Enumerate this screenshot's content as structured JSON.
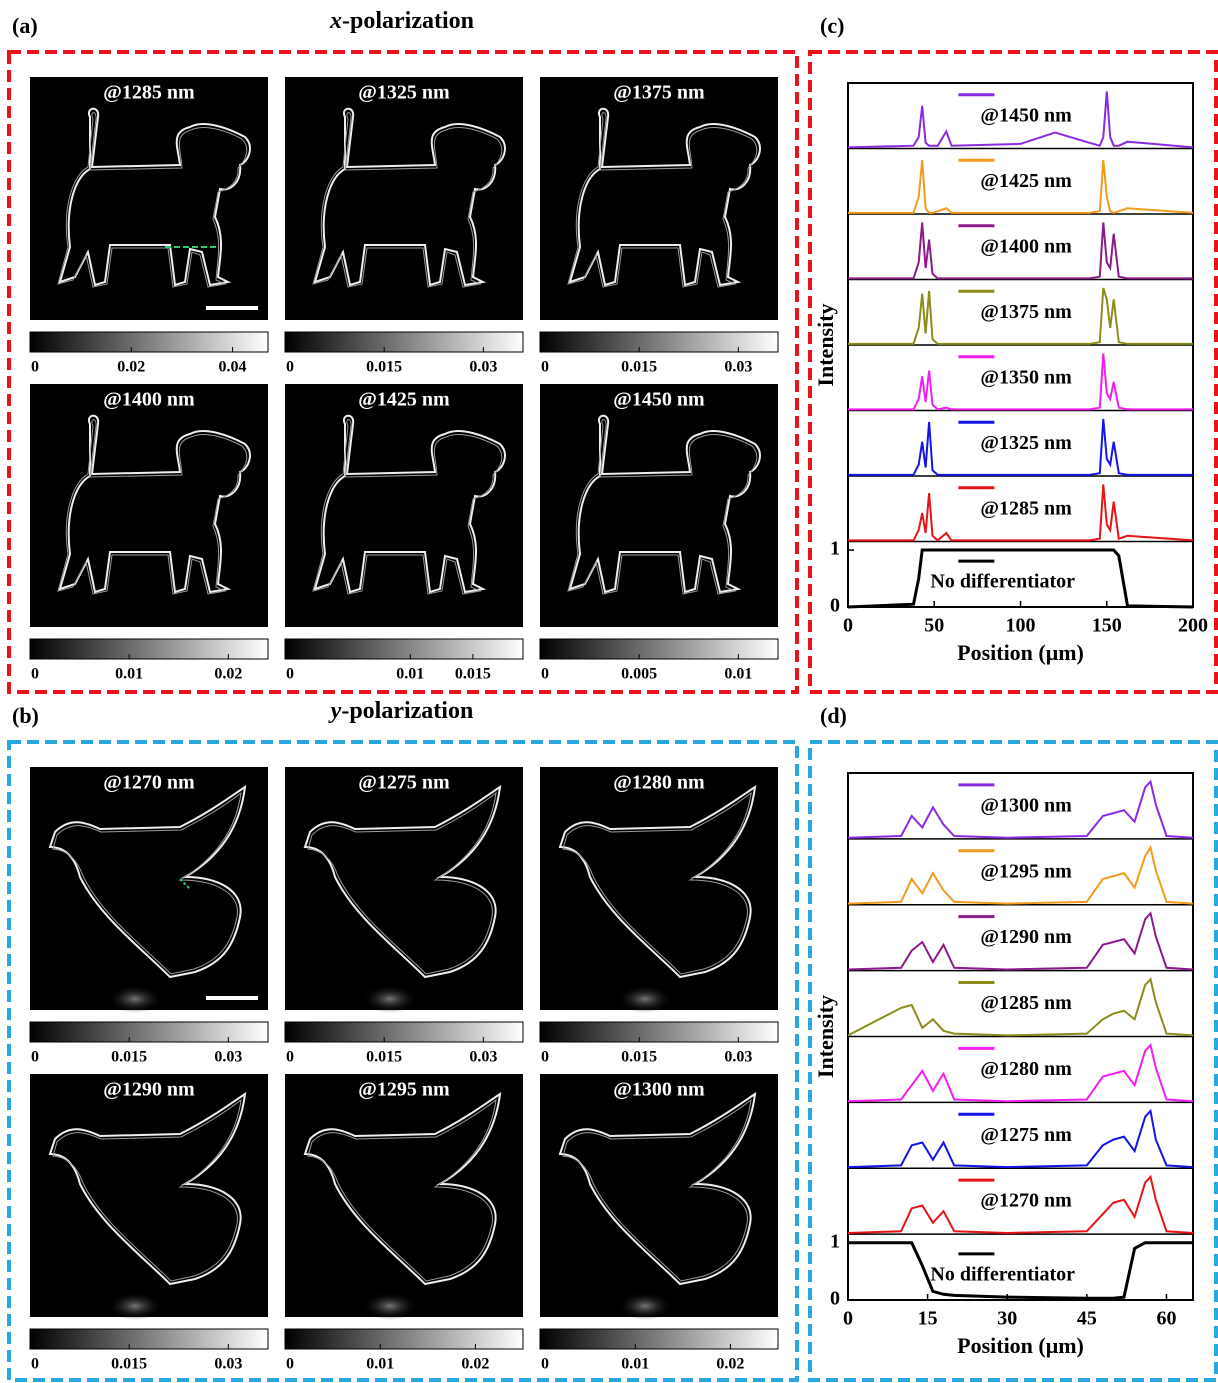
{
  "image_panels": [
    {
      "label": "(a)",
      "title": "x-polarization",
      "border_color": "#e8141b",
      "tiles": [
        {
          "label": "@1285 nm",
          "cbar_lim": [
            0,
            0.047
          ],
          "cbar_ticks": [
            0,
            0.02,
            0.04
          ]
        },
        {
          "label": "@1325 nm",
          "cbar_lim": [
            0,
            0.036
          ],
          "cbar_ticks": [
            0,
            0.015,
            0.03
          ]
        },
        {
          "label": "@1375 nm",
          "cbar_lim": [
            0,
            0.036
          ],
          "cbar_ticks": [
            0,
            0.015,
            0.03
          ]
        },
        {
          "label": "@1400 nm",
          "cbar_lim": [
            0,
            0.024
          ],
          "cbar_ticks": [
            0,
            0.01,
            0.02
          ]
        },
        {
          "label": "@1425 nm",
          "cbar_lim": [
            0,
            0.019
          ],
          "cbar_ticks": [
            0,
            0.01,
            0.015
          ]
        },
        {
          "label": "@1450 nm",
          "cbar_lim": [
            0,
            0.012
          ],
          "cbar_ticks": [
            0,
            0.005,
            0.01
          ]
        }
      ]
    },
    {
      "label": "(b)",
      "title": "y-polarization",
      "border_color": "#29a8e0",
      "tiles": [
        {
          "label": "@1270 nm",
          "cbar_lim": [
            0,
            0.036
          ],
          "cbar_ticks": [
            0,
            0.015,
            0.03
          ]
        },
        {
          "label": "@1275 nm",
          "cbar_lim": [
            0,
            0.036
          ],
          "cbar_ticks": [
            0,
            0.015,
            0.03
          ]
        },
        {
          "label": "@1280 nm",
          "cbar_lim": [
            0,
            0.036
          ],
          "cbar_ticks": [
            0,
            0.015,
            0.03
          ]
        },
        {
          "label": "@1290 nm",
          "cbar_lim": [
            0,
            0.036
          ],
          "cbar_ticks": [
            0,
            0.015,
            0.03
          ]
        },
        {
          "label": "@1295 nm",
          "cbar_lim": [
            0,
            0.025
          ],
          "cbar_ticks": [
            0,
            0.01,
            0.02
          ]
        },
        {
          "label": "@1300 nm",
          "cbar_lim": [
            0,
            0.025
          ],
          "cbar_ticks": [
            0,
            0.01,
            0.02
          ]
        }
      ]
    }
  ],
  "chart_data": [
    {
      "type": "line",
      "label": "(c)",
      "xlabel": "Position (μm)",
      "ylabel": "Intensity",
      "xlim": [
        0,
        200
      ],
      "xticks": [
        0,
        50,
        100,
        150,
        200
      ],
      "ylim": [
        0,
        1.15
      ],
      "yticks": [
        0,
        1
      ],
      "x": [
        0,
        38,
        41,
        43,
        45,
        47,
        49,
        52,
        57,
        60,
        100,
        120,
        140,
        146,
        148,
        150,
        152,
        154,
        157,
        162,
        200
      ],
      "series": [
        {
          "name": "@1450 nm",
          "color": "#8a2be2",
          "values": [
            0.02,
            0.05,
            0.2,
            0.75,
            0.1,
            0.05,
            0.05,
            0.05,
            0.3,
            0.05,
            0.08,
            0.28,
            0.1,
            0.05,
            0.2,
            1.0,
            0.2,
            0.05,
            0.05,
            0.12,
            0.02
          ]
        },
        {
          "name": "@1425 nm",
          "color": "#f39a1e",
          "values": [
            0.02,
            0.02,
            0.3,
            0.95,
            0.1,
            0.02,
            0.02,
            0.05,
            0.1,
            0.02,
            0.02,
            0.02,
            0.02,
            0.05,
            0.95,
            0.3,
            0.05,
            0.02,
            0.05,
            0.1,
            0.02
          ]
        },
        {
          "name": "@1400 nm",
          "color": "#8b1a8b",
          "values": [
            0.02,
            0.02,
            0.3,
            1.0,
            0.2,
            0.7,
            0.1,
            0.02,
            0.02,
            0.02,
            0.02,
            0.02,
            0.02,
            0.05,
            1.0,
            0.3,
            0.2,
            0.8,
            0.05,
            0.02,
            0.02
          ]
        },
        {
          "name": "@1375 nm",
          "color": "#8c8c1a",
          "values": [
            0.02,
            0.02,
            0.3,
            0.9,
            0.2,
            0.95,
            0.1,
            0.02,
            0.02,
            0.02,
            0.02,
            0.02,
            0.02,
            0.05,
            1.0,
            0.8,
            0.3,
            0.8,
            0.05,
            0.02,
            0.02
          ]
        },
        {
          "name": "@1350 nm",
          "color": "#f01ef0",
          "values": [
            0.02,
            0.02,
            0.2,
            0.6,
            0.15,
            0.7,
            0.1,
            0.02,
            0.05,
            0.02,
            0.02,
            0.02,
            0.02,
            0.05,
            1.0,
            0.3,
            0.2,
            0.5,
            0.05,
            0.02,
            0.02
          ]
        },
        {
          "name": "@1325 nm",
          "color": "#1414e6",
          "values": [
            0.02,
            0.02,
            0.2,
            0.6,
            0.15,
            0.95,
            0.1,
            0.02,
            0.02,
            0.02,
            0.02,
            0.02,
            0.02,
            0.05,
            1.0,
            0.3,
            0.2,
            0.6,
            0.05,
            0.02,
            0.02
          ]
        },
        {
          "name": "@1285 nm",
          "color": "#e61414",
          "values": [
            0.02,
            0.02,
            0.2,
            0.5,
            0.15,
            0.85,
            0.1,
            0.02,
            0.15,
            0.02,
            0.02,
            0.02,
            0.02,
            0.05,
            1.0,
            0.3,
            0.2,
            0.7,
            0.05,
            0.1,
            0.02
          ]
        },
        {
          "name": "No differentiator",
          "color": "#000000",
          "values": [
            0,
            0.05,
            0.5,
            1,
            1,
            1,
            1,
            1,
            1,
            1,
            1,
            1,
            1,
            1,
            1,
            1,
            1,
            1,
            0.9,
            0.02,
            0
          ]
        }
      ]
    },
    {
      "type": "line",
      "label": "(d)",
      "xlabel": "Position (μm)",
      "ylabel": "Intensity",
      "xlim": [
        0,
        65
      ],
      "xticks": [
        0,
        15,
        30,
        45,
        60
      ],
      "ylim": [
        0,
        1.15
      ],
      "yticks": [
        0,
        1
      ],
      "x": [
        0,
        10,
        12,
        14,
        16,
        18,
        20,
        30,
        45,
        48,
        50,
        52,
        54,
        56,
        57,
        58,
        60,
        65
      ],
      "series": [
        {
          "name": "@1300 nm",
          "color": "#8a2be2",
          "values": [
            0.02,
            0.05,
            0.4,
            0.2,
            0.55,
            0.25,
            0.05,
            0.02,
            0.05,
            0.4,
            0.45,
            0.5,
            0.3,
            0.9,
            1.0,
            0.6,
            0.05,
            0.02
          ]
        },
        {
          "name": "@1295 nm",
          "color": "#f39a1e",
          "values": [
            0.02,
            0.05,
            0.45,
            0.2,
            0.55,
            0.25,
            0.05,
            0.02,
            0.05,
            0.45,
            0.5,
            0.55,
            0.3,
            0.85,
            1.0,
            0.6,
            0.05,
            0.02
          ]
        },
        {
          "name": "@1290 nm",
          "color": "#8b1a8b",
          "values": [
            0.02,
            0.05,
            0.35,
            0.5,
            0.15,
            0.45,
            0.05,
            0.02,
            0.05,
            0.45,
            0.5,
            0.55,
            0.3,
            0.9,
            1.0,
            0.6,
            0.05,
            0.02
          ]
        },
        {
          "name": "@1285 nm",
          "color": "#8c8c1a",
          "values": [
            0.02,
            0.5,
            0.55,
            0.15,
            0.3,
            0.1,
            0.05,
            0.02,
            0.05,
            0.3,
            0.4,
            0.45,
            0.3,
            0.9,
            1.0,
            0.6,
            0.05,
            0.02
          ]
        },
        {
          "name": "@1280 nm",
          "color": "#f01ef0",
          "values": [
            0.02,
            0.05,
            0.3,
            0.55,
            0.2,
            0.5,
            0.05,
            0.02,
            0.05,
            0.45,
            0.5,
            0.55,
            0.3,
            0.9,
            1.0,
            0.6,
            0.05,
            0.02
          ]
        },
        {
          "name": "@1275 nm",
          "color": "#1414e6",
          "values": [
            0.02,
            0.05,
            0.4,
            0.45,
            0.15,
            0.45,
            0.05,
            0.02,
            0.05,
            0.4,
            0.5,
            0.55,
            0.3,
            0.9,
            1.0,
            0.5,
            0.05,
            0.02
          ]
        },
        {
          "name": "@1270 nm",
          "color": "#e61414",
          "values": [
            0.02,
            0.05,
            0.45,
            0.5,
            0.2,
            0.4,
            0.05,
            0.02,
            0.05,
            0.35,
            0.55,
            0.6,
            0.3,
            0.9,
            1.0,
            0.6,
            0.05,
            0.02
          ]
        },
        {
          "name": "No differentiator",
          "color": "#000000",
          "values": [
            1,
            1,
            1,
            0.6,
            0.15,
            0.1,
            0.08,
            0.05,
            0.03,
            0.03,
            0.03,
            0.05,
            0.9,
            1,
            1,
            1,
            1,
            1
          ]
        }
      ]
    }
  ]
}
